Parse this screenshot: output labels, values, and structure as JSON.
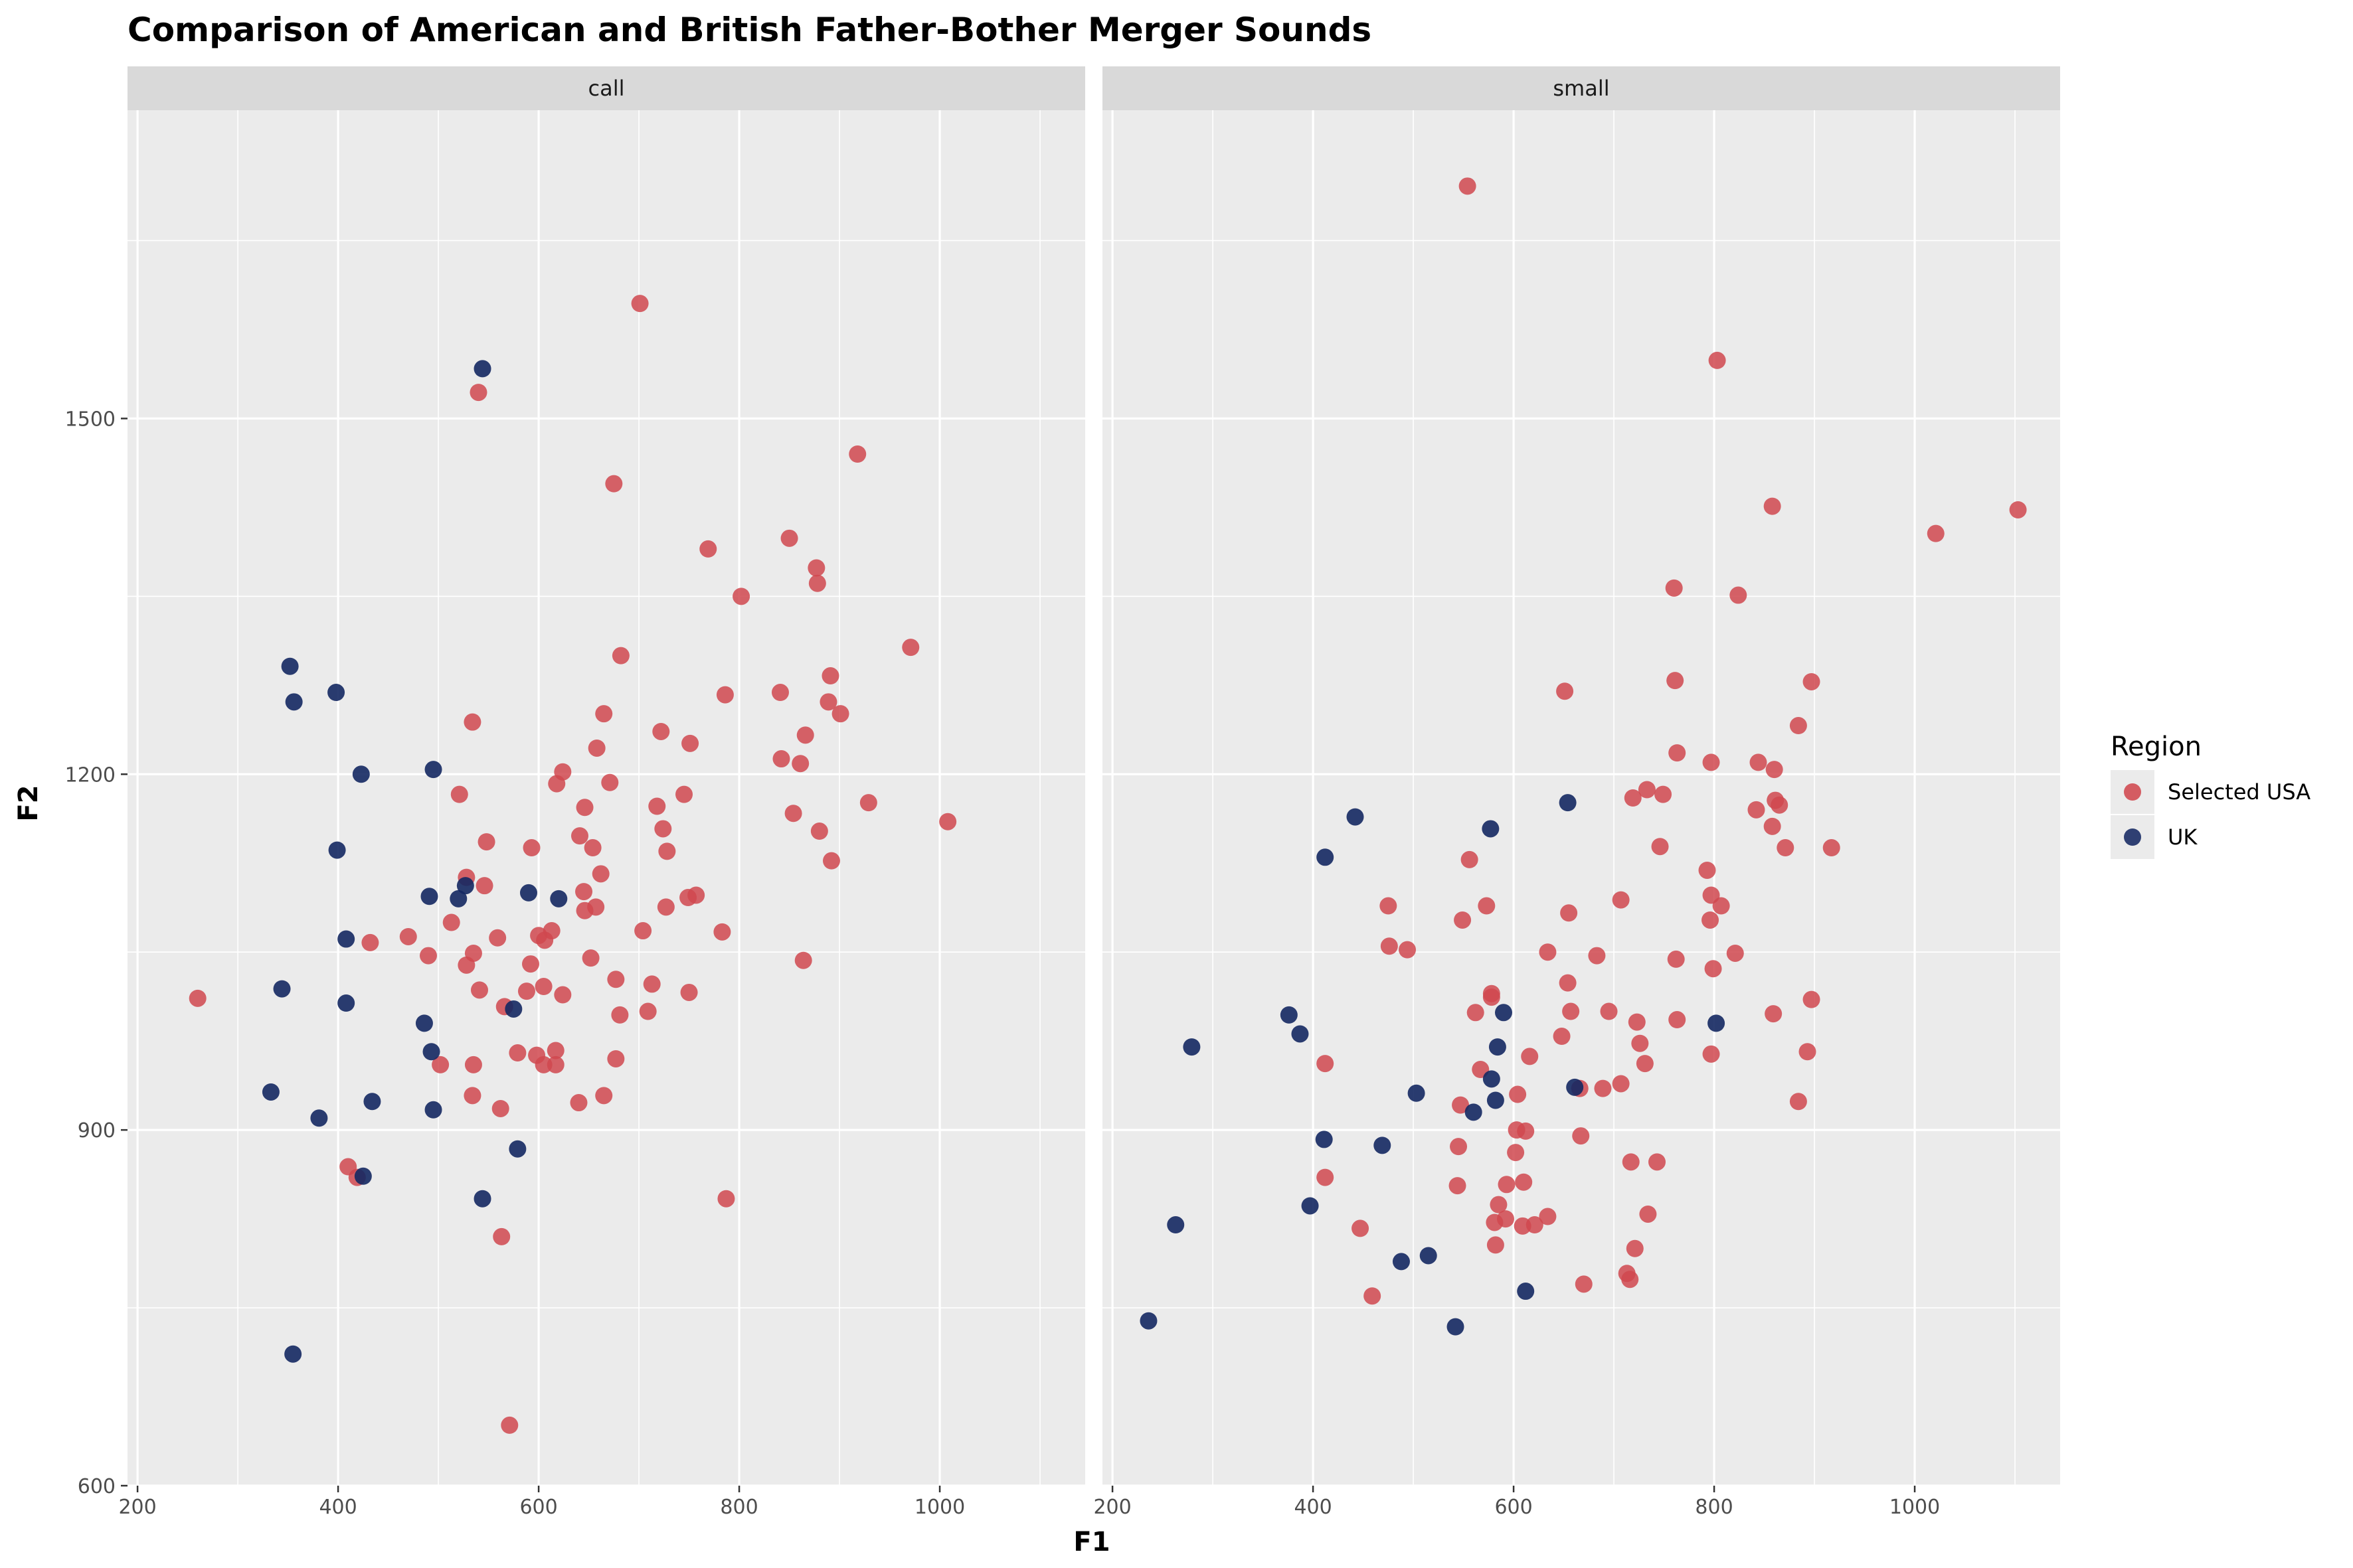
{
  "chart_data": {
    "type": "scatter",
    "title": "Comparison of American and British Father-Bother Merger Sounds",
    "xlabel": "F1",
    "ylabel": "F2",
    "xlim": [
      190,
      1145
    ],
    "ylim": [
      600,
      1760
    ],
    "x_major_ticks": [
      200,
      400,
      600,
      800,
      1000
    ],
    "x_minor_ticks": [
      300,
      500,
      700,
      900,
      1100
    ],
    "y_major_ticks": [
      600,
      900,
      1200,
      1500
    ],
    "y_minor_ticks": [
      750,
      1050,
      1350,
      1650
    ],
    "grid": true,
    "legend": {
      "title": "Region",
      "position": "right"
    },
    "series_styles": [
      {
        "name": "Selected USA",
        "color": "#D0484F"
      },
      {
        "name": "UK",
        "color": "#142862"
      }
    ],
    "facets": [
      {
        "label": "call",
        "series": [
          {
            "name": "Selected USA",
            "points": [
              [
                701,
                1597
              ],
              [
                540,
                1522
              ],
              [
                918,
                1470
              ],
              [
                675,
                1445
              ],
              [
                769,
                1390
              ],
              [
                850,
                1399
              ],
              [
                877,
                1374
              ],
              [
                878,
                1361
              ],
              [
                802,
                1350
              ],
              [
                971,
                1307
              ],
              [
                682,
                1300
              ],
              [
                891,
                1283
              ],
              [
                786,
                1267
              ],
              [
                841,
                1269
              ],
              [
                889,
                1261
              ],
              [
                901,
                1251
              ],
              [
                665,
                1251
              ],
              [
                534,
                1244
              ],
              [
                722,
                1236
              ],
              [
                866,
                1233
              ],
              [
                751,
                1226
              ],
              [
                658,
                1222
              ],
              [
                842,
                1213
              ],
              [
                861,
                1209
              ],
              [
                624,
                1202
              ],
              [
                618,
                1192
              ],
              [
                671,
                1193
              ],
              [
                521,
                1183
              ],
              [
                745,
                1183
              ],
              [
                718,
                1173
              ],
              [
                646,
                1172
              ],
              [
                929,
                1176
              ],
              [
                1008,
                1160
              ],
              [
                880,
                1152
              ],
              [
                854,
                1167
              ],
              [
                724,
                1154
              ],
              [
                641,
                1148
              ],
              [
                548,
                1143
              ],
              [
                593,
                1138
              ],
              [
                654,
                1138
              ],
              [
                728,
                1135
              ],
              [
                892,
                1127
              ],
              [
                662,
                1116
              ],
              [
                528,
                1113
              ],
              [
                546,
                1106
              ],
              [
                645,
                1101
              ],
              [
                757,
                1098
              ],
              [
                749,
                1096
              ],
              [
                727,
                1088
              ],
              [
                657,
                1088
              ],
              [
                646,
                1085
              ],
              [
                513,
                1075
              ],
              [
                704,
                1068
              ],
              [
                613,
                1068
              ],
              [
                783,
                1067
              ],
              [
                600,
                1064
              ],
              [
                559,
                1062
              ],
              [
                606,
                1060
              ],
              [
                432,
                1058
              ],
              [
                470,
                1063
              ],
              [
                535,
                1049
              ],
              [
                490,
                1047
              ],
              [
                652,
                1045
              ],
              [
                864,
                1043
              ],
              [
                592,
                1040
              ],
              [
                528,
                1039
              ],
              [
                713,
                1023
              ],
              [
                677,
                1027
              ],
              [
                605,
                1021
              ],
              [
                541,
                1018
              ],
              [
                588,
                1017
              ],
              [
                750,
                1016
              ],
              [
                624,
                1014
              ],
              [
                260,
                1011
              ],
              [
                566,
                1004
              ],
              [
                709,
                1000
              ],
              [
                681,
                997
              ],
              [
                579,
                965
              ],
              [
                598,
                963
              ],
              [
                617,
                967
              ],
              [
                677,
                960
              ],
              [
                605,
                955
              ],
              [
                617,
                955
              ],
              [
                502,
                955
              ],
              [
                535,
                955
              ],
              [
                534,
                929
              ],
              [
                665,
                929
              ],
              [
                640,
                923
              ],
              [
                562,
                918
              ],
              [
                410,
                869
              ],
              [
                419,
                860
              ],
              [
                787,
                842
              ],
              [
                563,
                810
              ],
              [
                571,
                651
              ]
            ]
          },
          {
            "name": "UK",
            "points": [
              [
                544,
                1542
              ],
              [
                352,
                1291
              ],
              [
                398,
                1269
              ],
              [
                356,
                1261
              ],
              [
                495,
                1204
              ],
              [
                423,
                1200
              ],
              [
                399,
                1136
              ],
              [
                527,
                1106
              ],
              [
                620,
                1095
              ],
              [
                590,
                1100
              ],
              [
                491,
                1097
              ],
              [
                520,
                1095
              ],
              [
                408,
                1061
              ],
              [
                344,
                1019
              ],
              [
                408,
                1007
              ],
              [
                575,
                1002
              ],
              [
                486,
                990
              ],
              [
                493,
                966
              ],
              [
                434,
                924
              ],
              [
                333,
                932
              ],
              [
                495,
                917
              ],
              [
                381,
                910
              ],
              [
                579,
                884
              ],
              [
                425,
                861
              ],
              [
                544,
                842
              ],
              [
                355,
                711
              ]
            ]
          }
        ]
      },
      {
        "label": "small",
        "series": [
          {
            "name": "Selected USA",
            "points": [
              [
                554,
                1696
              ],
              [
                803,
                1549
              ],
              [
                1103,
                1423
              ],
              [
                858,
                1426
              ],
              [
                1021,
                1403
              ],
              [
                824,
                1351
              ],
              [
                760,
                1357
              ],
              [
                897,
                1278
              ],
              [
                761,
                1279
              ],
              [
                651,
                1270
              ],
              [
                884,
                1241
              ],
              [
                763,
                1218
              ],
              [
                844,
                1210
              ],
              [
                797,
                1210
              ],
              [
                860,
                1204
              ],
              [
                733,
                1187
              ],
              [
                719,
                1180
              ],
              [
                749,
                1183
              ],
              [
                865,
                1174
              ],
              [
                861,
                1178
              ],
              [
                842,
                1170
              ],
              [
                858,
                1156
              ],
              [
                917,
                1138
              ],
              [
                746,
                1139
              ],
              [
                871,
                1138
              ],
              [
                556,
                1128
              ],
              [
                793,
                1119
              ],
              [
                707,
                1094
              ],
              [
                797,
                1098
              ],
              [
                475,
                1089
              ],
              [
                807,
                1089
              ],
              [
                573,
                1089
              ],
              [
                655,
                1083
              ],
              [
                549,
                1077
              ],
              [
                796,
                1077
              ],
              [
                683,
                1047
              ],
              [
                821,
                1049
              ],
              [
                762,
                1044
              ],
              [
                476,
                1055
              ],
              [
                494,
                1052
              ],
              [
                634,
                1050
              ],
              [
                799,
                1036
              ],
              [
                654,
                1024
              ],
              [
                578,
                1015
              ],
              [
                578,
                1012
              ],
              [
                897,
                1010
              ],
              [
                657,
                1000
              ],
              [
                695,
                1000
              ],
              [
                562,
                999
              ],
              [
                859,
                998
              ],
              [
                763,
                993
              ],
              [
                723,
                991
              ],
              [
                648,
                979
              ],
              [
                726,
                973
              ],
              [
                797,
                964
              ],
              [
                893,
                966
              ],
              [
                616,
                962
              ],
              [
                412,
                956
              ],
              [
                731,
                956
              ],
              [
                567,
                951
              ],
              [
                707,
                939
              ],
              [
                666,
                935
              ],
              [
                689,
                935
              ],
              [
                547,
                921
              ],
              [
                604,
                930
              ],
              [
                884,
                924
              ],
              [
                603,
                900
              ],
              [
                612,
                899
              ],
              [
                667,
                895
              ],
              [
                545,
                886
              ],
              [
                602,
                881
              ],
              [
                717,
                873
              ],
              [
                743,
                873
              ],
              [
                412,
                860
              ],
              [
                593,
                854
              ],
              [
                610,
                856
              ],
              [
                544,
                853
              ],
              [
                585,
                837
              ],
              [
                734,
                829
              ],
              [
                634,
                827
              ],
              [
                592,
                825
              ],
              [
                581,
                822
              ],
              [
                609,
                819
              ],
              [
                621,
                820
              ],
              [
                447,
                817
              ],
              [
                721,
                800
              ],
              [
                582,
                803
              ],
              [
                713,
                779
              ],
              [
                716,
                774
              ],
              [
                670,
                770
              ],
              [
                459,
                760
              ]
            ]
          },
          {
            "name": "UK",
            "points": [
              [
                654,
                1176
              ],
              [
                442,
                1164
              ],
              [
                577,
                1154
              ],
              [
                412,
                1130
              ],
              [
                376,
                997
              ],
              [
                590,
                999
              ],
              [
                802,
                990
              ],
              [
                387,
                981
              ],
              [
                279,
                970
              ],
              [
                584,
                970
              ],
              [
                503,
                931
              ],
              [
                661,
                936
              ],
              [
                578,
                943
              ],
              [
                582,
                925
              ],
              [
                560,
                915
              ],
              [
                411,
                892
              ],
              [
                469,
                887
              ],
              [
                397,
                836
              ],
              [
                263,
                820
              ],
              [
                515,
                794
              ],
              [
                488,
                789
              ],
              [
                612,
                764
              ],
              [
                236,
                739
              ],
              [
                542,
                734
              ]
            ]
          }
        ]
      }
    ]
  }
}
